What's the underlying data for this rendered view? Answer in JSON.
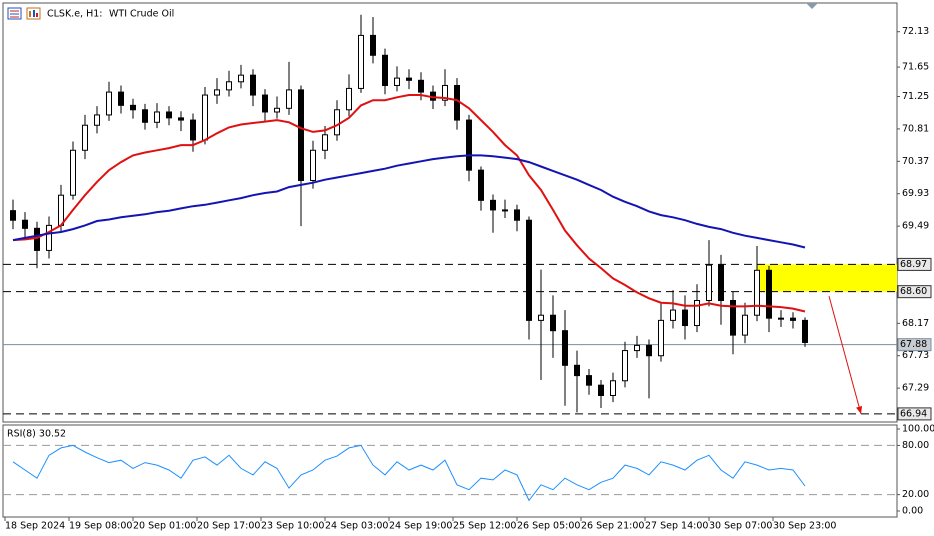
{
  "header": {
    "symbol": "CLSK.e, H1:",
    "description": "WTI Crude Oil"
  },
  "chart_data": [
    {
      "type": "candlestick",
      "x": [
        2,
        5,
        8,
        11,
        14,
        17,
        20,
        23,
        26,
        29,
        32,
        35,
        38,
        41,
        44,
        47,
        50,
        53,
        56,
        59,
        62,
        65,
        68,
        71,
        74,
        77,
        80,
        83,
        86,
        89,
        92,
        95,
        98,
        101,
        104,
        107,
        110,
        113,
        116,
        119,
        122,
        125,
        128,
        131,
        134,
        137,
        140,
        143,
        146,
        149,
        152,
        155,
        158,
        161,
        164,
        167,
        170,
        173,
        176,
        179,
        182,
        185,
        188,
        191,
        194,
        197,
        200
      ],
      "open": [
        69.7,
        69.57,
        69.46,
        69.16,
        69.5,
        69.91,
        70.52,
        70.86,
        71.0,
        71.31,
        71.13,
        71.07,
        70.9,
        71.04,
        70.96,
        70.93,
        70.66,
        71.27,
        71.34,
        71.45,
        71.54,
        71.27,
        71.04,
        71.09,
        71.34,
        70.11,
        70.52,
        70.73,
        71.07,
        71.36,
        72.08,
        71.81,
        71.4,
        71.5,
        71.47,
        71.31,
        71.2,
        71.4,
        70.93,
        70.25,
        69.84,
        69.71,
        69.71,
        69.57,
        68.21,
        68.28,
        68.07,
        67.6,
        67.46,
        67.33,
        67.19,
        67.39,
        67.8,
        67.87,
        67.73,
        68.21,
        68.35,
        68.14,
        68.48,
        68.96,
        68.48,
        68.01,
        68.28,
        68.89,
        68.24,
        68.24,
        68.21
      ],
      "high": [
        69.85,
        69.68,
        69.55,
        69.62,
        70.05,
        70.64,
        71.0,
        71.12,
        71.45,
        71.4,
        71.22,
        71.15,
        71.16,
        71.12,
        71.05,
        71.02,
        71.38,
        71.5,
        71.6,
        71.68,
        71.62,
        71.35,
        71.25,
        71.72,
        71.4,
        70.65,
        70.85,
        71.2,
        71.55,
        72.36,
        72.33,
        71.9,
        71.66,
        71.62,
        71.58,
        71.4,
        71.62,
        71.5,
        71.0,
        70.3,
        69.92,
        69.85,
        69.78,
        69.62,
        68.9,
        68.55,
        68.35,
        67.8,
        67.55,
        67.4,
        67.5,
        67.92,
        68.0,
        67.95,
        68.45,
        68.62,
        68.55,
        68.7,
        69.3,
        69.1,
        68.6,
        68.45,
        69.22,
        68.95,
        68.35,
        68.32,
        68.25
      ],
      "low": [
        69.45,
        69.3,
        68.92,
        69.05,
        69.42,
        69.85,
        70.4,
        70.75,
        70.92,
        71.02,
        70.95,
        70.8,
        70.82,
        70.86,
        70.78,
        70.5,
        70.6,
        71.15,
        71.25,
        71.36,
        71.12,
        70.9,
        70.95,
        71.0,
        69.49,
        70.0,
        70.4,
        70.65,
        70.98,
        71.3,
        71.7,
        71.28,
        71.32,
        71.35,
        71.2,
        71.08,
        71.12,
        70.8,
        70.1,
        69.7,
        69.4,
        69.6,
        69.42,
        67.95,
        67.4,
        67.7,
        67.05,
        66.96,
        67.2,
        67.02,
        67.1,
        67.3,
        67.7,
        67.15,
        67.65,
        68.1,
        67.95,
        68.05,
        68.4,
        68.15,
        67.75,
        67.9,
        68.2,
        68.05,
        68.12,
        68.1,
        67.85
      ],
      "close": [
        69.57,
        69.46,
        69.16,
        69.5,
        69.91,
        70.52,
        70.86,
        71.0,
        71.31,
        71.13,
        71.07,
        70.9,
        71.04,
        70.96,
        70.93,
        70.66,
        71.27,
        71.34,
        71.45,
        71.54,
        71.27,
        71.04,
        71.09,
        71.34,
        70.11,
        70.52,
        70.73,
        71.07,
        71.36,
        72.08,
        71.81,
        71.4,
        71.5,
        71.47,
        71.31,
        71.2,
        71.4,
        70.93,
        70.25,
        69.84,
        69.71,
        69.71,
        69.57,
        68.21,
        68.28,
        68.07,
        67.6,
        67.46,
        67.33,
        67.19,
        67.39,
        67.8,
        67.87,
        67.73,
        68.21,
        68.35,
        68.14,
        68.48,
        68.96,
        68.48,
        68.01,
        68.28,
        68.89,
        68.24,
        68.24,
        68.21,
        67.91
      ],
      "color": "#000000",
      "series": [
        {
          "color": "#e01010",
          "values": [
            69.3,
            69.31,
            69.33,
            69.41,
            69.5,
            69.71,
            69.91,
            70.09,
            70.25,
            70.36,
            70.45,
            70.49,
            70.52,
            70.55,
            70.59,
            70.59,
            70.66,
            70.75,
            70.83,
            70.87,
            70.89,
            70.91,
            70.93,
            70.9,
            70.82,
            70.77,
            70.79,
            70.86,
            70.96,
            71.13,
            71.2,
            71.2,
            71.24,
            71.27,
            71.27,
            71.24,
            71.23,
            71.2,
            71.09,
            70.93,
            70.77,
            70.59,
            70.45,
            70.18,
            69.98,
            69.71,
            69.43,
            69.23,
            69.05,
            68.92,
            68.78,
            68.69,
            68.59,
            68.51,
            68.45,
            68.44,
            68.41,
            68.41,
            68.44,
            68.41,
            68.4,
            68.4,
            68.41,
            68.4,
            68.39,
            68.37,
            68.33
          ]
        },
        {
          "color": "#1414b4",
          "values": [
            69.3,
            69.33,
            69.36,
            69.39,
            69.41,
            69.45,
            69.5,
            69.56,
            69.58,
            69.61,
            69.63,
            69.65,
            69.68,
            69.7,
            69.73,
            69.76,
            69.78,
            69.81,
            69.84,
            69.87,
            69.91,
            69.94,
            69.96,
            70.02,
            70.05,
            70.08,
            70.12,
            70.15,
            70.18,
            70.21,
            70.24,
            70.27,
            70.31,
            70.34,
            70.37,
            70.4,
            70.42,
            70.44,
            70.45,
            70.45,
            70.44,
            70.42,
            70.4,
            70.36,
            70.3,
            70.24,
            70.18,
            70.12,
            70.05,
            69.98,
            69.89,
            69.82,
            69.76,
            69.69,
            69.64,
            69.61,
            69.57,
            69.52,
            69.48,
            69.45,
            69.4,
            69.36,
            69.33,
            69.3,
            69.27,
            69.24,
            69.2
          ]
        }
      ],
      "xlim": [
        -0.5,
        223
      ],
      "ylim": [
        66.83,
        72.52
      ],
      "yticks": [
        72.13,
        71.65,
        71.25,
        70.81,
        70.37,
        69.93,
        69.49,
        68.17,
        67.73,
        67.29
      ],
      "xticks": [
        {
          "value": 0,
          "label": "18 Sep 2024"
        },
        {
          "value": 16,
          "label": "19 Sep 08:00"
        },
        {
          "value": 32,
          "label": "20 Sep 01:00"
        },
        {
          "value": 48,
          "label": "20 Sep 17:00"
        },
        {
          "value": 64,
          "label": "23 Sep 10:00"
        },
        {
          "value": 80,
          "label": "24 Sep 03:00"
        },
        {
          "value": 96,
          "label": "24 Sep 19:00"
        },
        {
          "value": 112,
          "label": "25 Sep 12:00"
        },
        {
          "value": 128,
          "label": "26 Sep 05:00"
        },
        {
          "value": 144,
          "label": "26 Sep 21:00"
        },
        {
          "value": 160,
          "label": "27 Sep 14:00"
        },
        {
          "value": 176,
          "label": "30 Sep 07:00"
        },
        {
          "value": 192,
          "label": "30 Sep 23:00"
        }
      ],
      "levels": [
        {
          "value": 68.97,
          "label": "68.97",
          "style": "dashed",
          "color": "#000000"
        },
        {
          "value": 68.6,
          "label": "68.60",
          "style": "dashed",
          "color": "#000000"
        },
        {
          "value": 67.88,
          "label": "67.88",
          "style": "solid",
          "color": "#7a8ea0"
        },
        {
          "value": 66.94,
          "label": "66.94",
          "style": "dashed",
          "color": "#000000"
        }
      ],
      "zone": {
        "x": [
          188,
          223
        ],
        "from": 68.97,
        "to": 68.6,
        "color": "#ffff00"
      },
      "arrow": {
        "x": [
          206,
          214
        ],
        "y": [
          68.54,
          66.94
        ],
        "color": "#e01010"
      }
    },
    {
      "type": "line",
      "title": "RSI(8) 30.52",
      "x": [
        2,
        5,
        8,
        11,
        14,
        17,
        20,
        23,
        26,
        29,
        32,
        35,
        38,
        41,
        44,
        47,
        50,
        53,
        56,
        59,
        62,
        65,
        68,
        71,
        74,
        77,
        80,
        83,
        86,
        89,
        92,
        95,
        98,
        101,
        104,
        107,
        110,
        113,
        116,
        119,
        122,
        125,
        128,
        131,
        134,
        137,
        140,
        143,
        146,
        149,
        152,
        155,
        158,
        161,
        164,
        167,
        170,
        173,
        176,
        179,
        182,
        185,
        188,
        191,
        194,
        197,
        200
      ],
      "series": [
        {
          "color": "#1e90ff",
          "values": [
            60,
            50,
            40,
            68,
            77,
            80,
            72,
            65,
            59,
            62,
            52,
            59,
            56,
            50,
            40,
            62,
            66,
            56,
            68,
            52,
            44,
            60,
            52,
            28,
            44,
            50,
            62,
            67,
            77,
            80,
            56,
            44,
            60,
            50,
            56,
            50,
            62,
            32,
            26,
            40,
            38,
            50,
            44,
            13,
            32,
            26,
            40,
            32,
            26,
            35,
            40,
            56,
            52,
            44,
            60,
            56,
            50,
            62,
            68,
            50,
            40,
            60,
            56,
            50,
            52,
            50,
            30.52
          ]
        }
      ],
      "xlim": [
        -0.5,
        223
      ],
      "ylim": [
        -7.3,
        104.9
      ],
      "yticks": [
        {
          "value": 100,
          "label": "100.00"
        },
        {
          "value": 80,
          "label": "80.00"
        },
        {
          "value": 20,
          "label": "20.00"
        },
        {
          "value": 0,
          "label": "0.00"
        }
      ],
      "levels": [
        {
          "value": 80,
          "style": "dashed",
          "color": "#9a9a9a"
        },
        {
          "value": 20,
          "style": "dashed",
          "color": "#9a9a9a"
        }
      ]
    }
  ]
}
